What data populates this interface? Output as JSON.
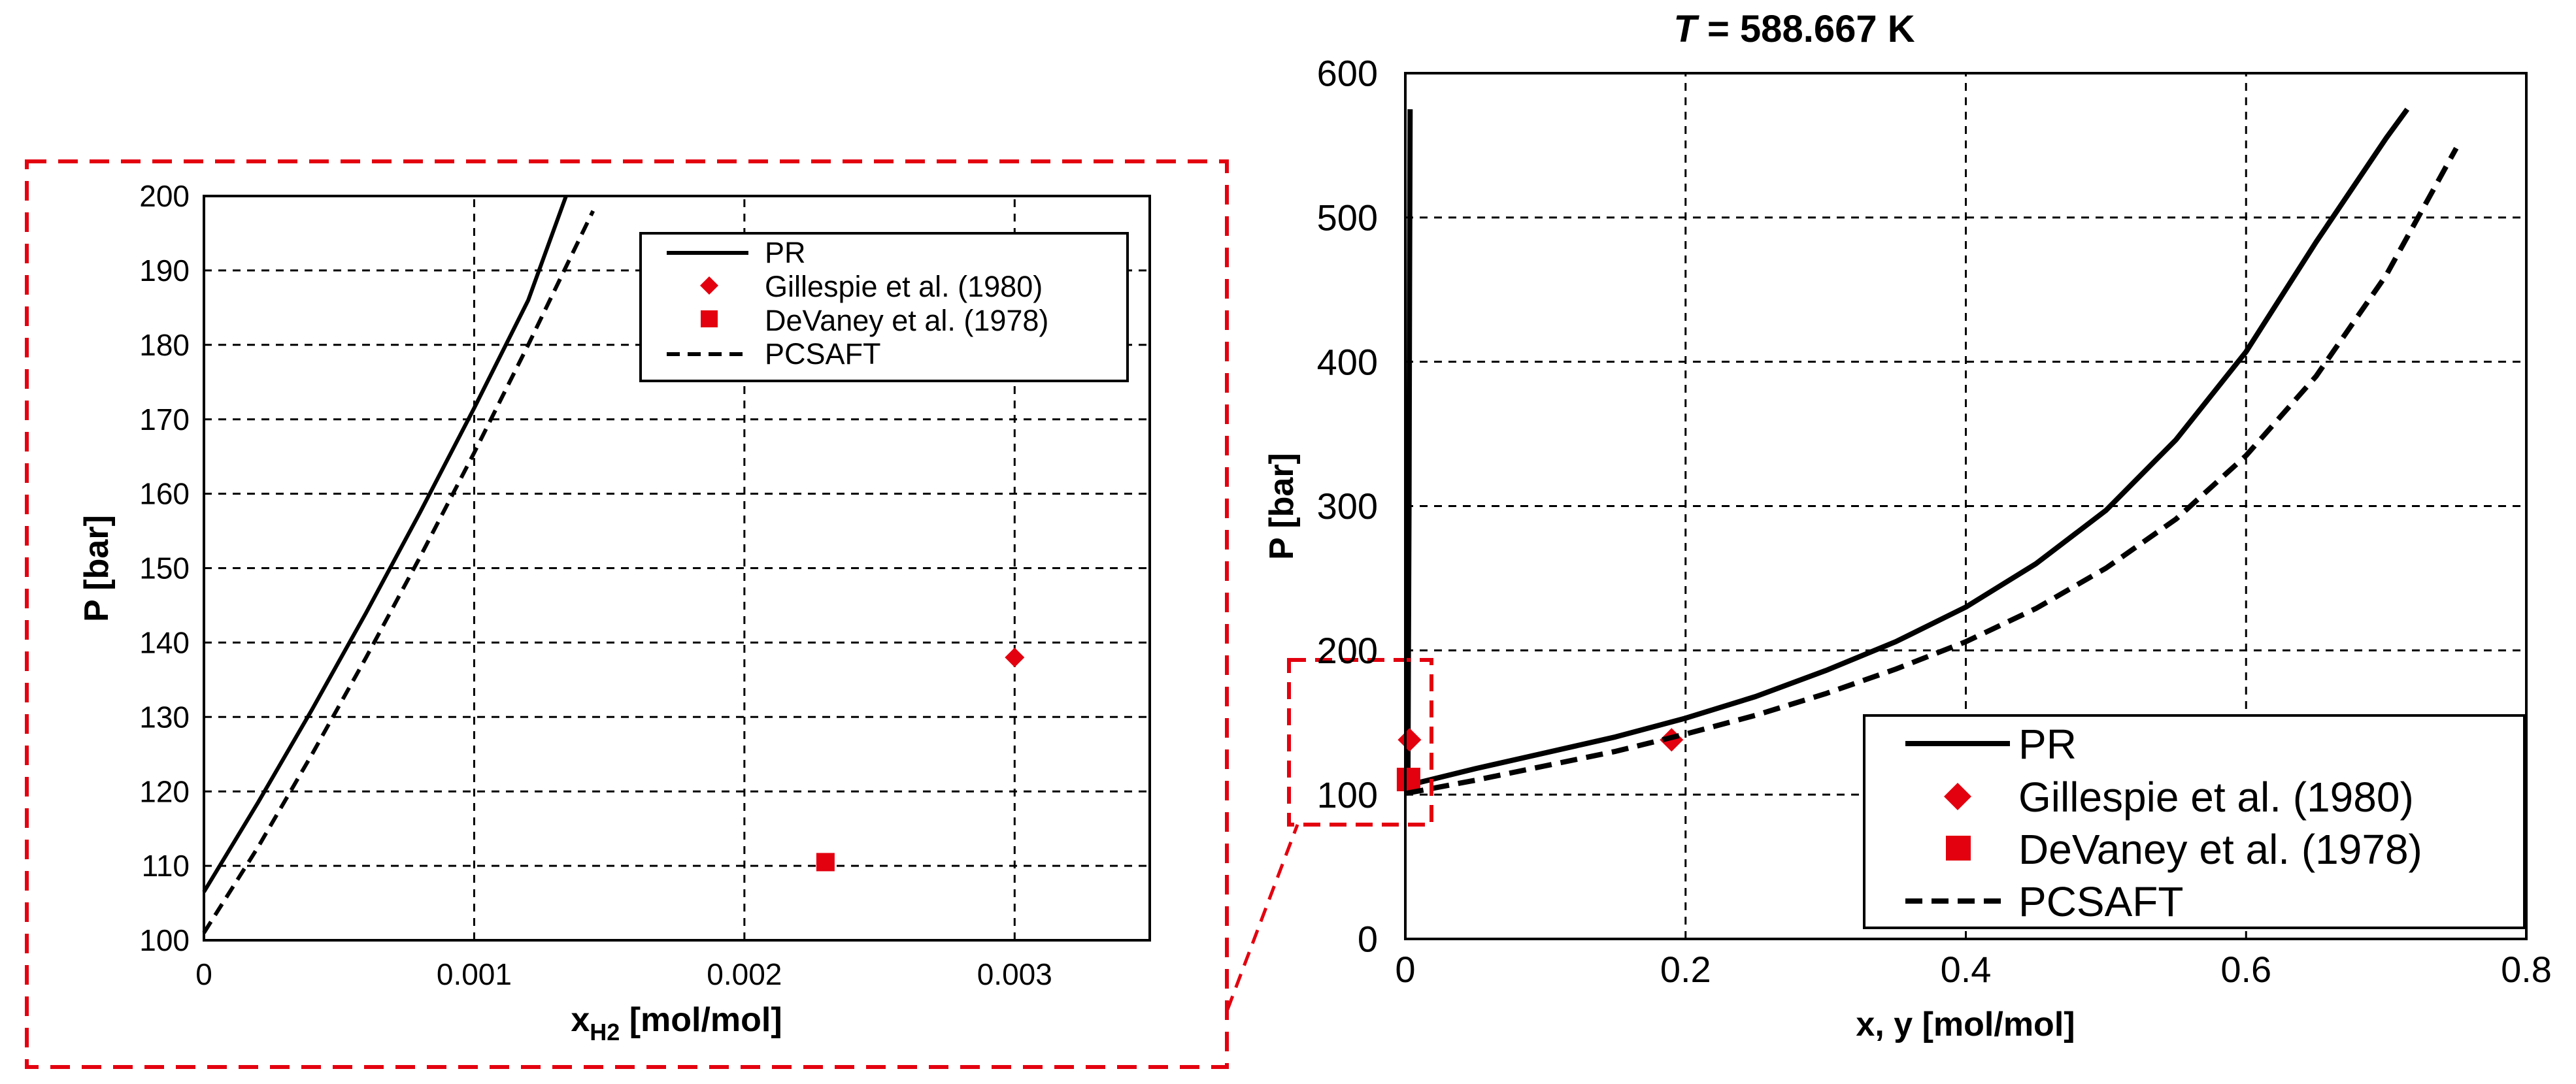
{
  "colors": {
    "series": "#000000",
    "marker": "#e3000f",
    "zoom_box": "#e3000f"
  },
  "chart_data": [
    {
      "id": "inset",
      "type": "line",
      "title": "",
      "xlabel_main": "x",
      "xlabel_sub": "H2",
      "xlabel_rest": " [mol/mol]",
      "ylabel": "P [bar]",
      "xlim": [
        0,
        0.0035
      ],
      "ylim": [
        100,
        200
      ],
      "xticks": [
        0,
        0.001,
        0.002,
        0.003
      ],
      "xtick_labels": [
        "0",
        "0.001",
        "0.002",
        "0.003"
      ],
      "yticks": [
        100,
        110,
        120,
        130,
        140,
        150,
        160,
        170,
        180,
        190,
        200
      ],
      "ytick_labels": [
        "100",
        "110",
        "120",
        "130",
        "140",
        "150",
        "160",
        "170",
        "180",
        "190",
        "200"
      ],
      "grid": true,
      "legend_position": "top-right",
      "series": [
        {
          "name": "PR",
          "style": "solid",
          "marker": "none",
          "x": [
            0,
            0.0002,
            0.0004,
            0.0006,
            0.0008,
            0.001,
            0.0012,
            0.00134
          ],
          "y": [
            106.5,
            118.5,
            131,
            144,
            157.5,
            171.5,
            186,
            200
          ]
        },
        {
          "name": "Gillespie et al. (1980)",
          "style": "none",
          "marker": "diamond",
          "x": [
            0.003
          ],
          "y": [
            138
          ]
        },
        {
          "name": "DeVaney et al. (1978)",
          "style": "none",
          "marker": "square",
          "x": [
            0.0023
          ],
          "y": [
            110.5
          ]
        },
        {
          "name": "PCSAFT",
          "style": "dashed",
          "marker": "none",
          "x": [
            0,
            0.0002,
            0.0004,
            0.0006,
            0.0008,
            0.001,
            0.0012,
            0.00144
          ],
          "y": [
            101,
            112.5,
            125,
            138,
            151.5,
            165.5,
            180,
            198
          ]
        }
      ]
    },
    {
      "id": "main",
      "type": "line",
      "title_italic": "T",
      "title_rest": " = 588.667 K",
      "xlabel": "x, y [mol/mol]",
      "ylabel": "P [bar]",
      "xlim": [
        0,
        0.8
      ],
      "ylim": [
        0,
        600
      ],
      "xticks": [
        0,
        0.2,
        0.4,
        0.6,
        0.8
      ],
      "xtick_labels": [
        "0",
        "0.2",
        "0.4",
        "0.6",
        "0.8"
      ],
      "yticks": [
        0,
        100,
        200,
        300,
        400,
        500,
        600
      ],
      "ytick_labels": [
        "0",
        "100",
        "200",
        "300",
        "400",
        "500",
        "600"
      ],
      "grid": true,
      "legend_position": "bottom-right",
      "series": [
        {
          "name": "PR",
          "style": "solid",
          "marker": "none",
          "segments": [
            {
              "x": [
                0.0018,
                0.0022,
                0.0026,
                0.003,
                0.0034
              ],
              "y": [
                106.5,
                200,
                300,
                450,
                575
              ]
            },
            {
              "x": [
                0.0018,
                0.05,
                0.1,
                0.15,
                0.2,
                0.25,
                0.3,
                0.35,
                0.4,
                0.45,
                0.5,
                0.55,
                0.6,
                0.65,
                0.7,
                0.715
              ],
              "y": [
                106.5,
                118,
                129,
                140,
                153,
                168,
                186,
                206,
                230,
                260,
                297,
                346,
                407,
                483,
                555,
                575
              ]
            }
          ]
        },
        {
          "name": "Gillespie et al. (1980)",
          "style": "none",
          "marker": "diamond",
          "x": [
            0.003,
            0.19
          ],
          "y": [
            138,
            138
          ]
        },
        {
          "name": "DeVaney et al. (1978)",
          "style": "none",
          "marker": "square",
          "x": [
            0.0023
          ],
          "y": [
            110.5
          ]
        },
        {
          "name": "PCSAFT",
          "style": "dashed",
          "marker": "none",
          "x": [
            0.001,
            0.05,
            0.1,
            0.15,
            0.2,
            0.25,
            0.3,
            0.35,
            0.4,
            0.45,
            0.5,
            0.55,
            0.6,
            0.65,
            0.7,
            0.75
          ],
          "y": [
            101,
            110,
            120,
            130,
            142,
            155,
            170,
            187,
            206,
            229,
            257,
            291,
            335,
            390,
            460,
            548
          ]
        }
      ]
    }
  ]
}
